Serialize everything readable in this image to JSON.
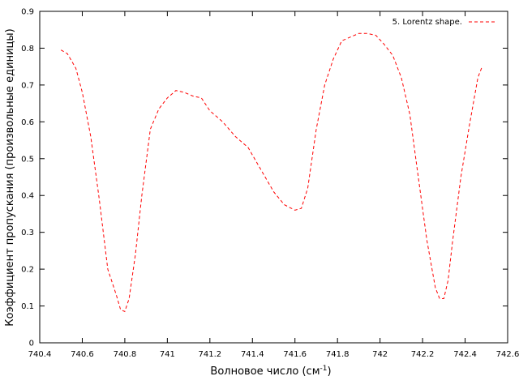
{
  "chart_data": {
    "type": "line",
    "xlabel": "Волновое число (см",
    "xlabel_sup": "-1",
    "xlabel_close": ")",
    "ylabel": "Коэффициент пропускания (произвольные единицы)",
    "xlim": [
      740.4,
      742.6
    ],
    "ylim": [
      0,
      0.9
    ],
    "xticks": [
      740.4,
      740.6,
      740.8,
      741,
      741.2,
      741.4,
      741.6,
      741.8,
      742,
      742.2,
      742.4,
      742.6
    ],
    "xtick_labels": [
      "740.4",
      "740.6",
      "740.8",
      "741",
      "741.2",
      "741.4",
      "741.6",
      "741.8",
      "742",
      "742.2",
      "742.4",
      "742.6"
    ],
    "yticks": [
      0,
      0.1,
      0.2,
      0.3,
      0.4,
      0.5,
      0.6,
      0.7,
      0.8,
      0.9
    ],
    "ytick_labels": [
      "0",
      "0.1",
      "0.2",
      "0.3",
      "0.4",
      "0.5",
      "0.6",
      "0.7",
      "0.8",
      "0.9"
    ],
    "grid": false,
    "legend_position": "top-right",
    "series": [
      {
        "name": "5. Lorentz shape.",
        "color": "#ff0000",
        "line_style": "dashed",
        "x": [
          740.5,
          740.53,
          740.57,
          740.6,
          740.64,
          740.68,
          740.72,
          740.76,
          740.78,
          740.8,
          740.82,
          740.85,
          740.88,
          740.92,
          740.96,
          741.0,
          741.04,
          741.08,
          741.12,
          741.16,
          741.2,
          741.26,
          741.32,
          741.38,
          741.42,
          741.46,
          741.5,
          741.55,
          741.6,
          741.63,
          741.66,
          741.7,
          741.74,
          741.78,
          741.82,
          741.86,
          741.9,
          741.94,
          741.98,
          742.02,
          742.06,
          742.1,
          742.14,
          742.18,
          742.22,
          742.26,
          742.28,
          742.3,
          742.32,
          742.34,
          742.38,
          742.42,
          742.46,
          742.48
        ],
        "y": [
          0.795,
          0.785,
          0.745,
          0.68,
          0.56,
          0.39,
          0.2,
          0.13,
          0.09,
          0.085,
          0.12,
          0.24,
          0.4,
          0.58,
          0.635,
          0.665,
          0.685,
          0.68,
          0.67,
          0.665,
          0.63,
          0.6,
          0.56,
          0.53,
          0.49,
          0.45,
          0.41,
          0.375,
          0.36,
          0.365,
          0.42,
          0.58,
          0.7,
          0.77,
          0.82,
          0.83,
          0.84,
          0.84,
          0.835,
          0.81,
          0.78,
          0.72,
          0.62,
          0.45,
          0.28,
          0.15,
          0.12,
          0.12,
          0.17,
          0.27,
          0.45,
          0.59,
          0.72,
          0.75
        ]
      }
    ]
  }
}
